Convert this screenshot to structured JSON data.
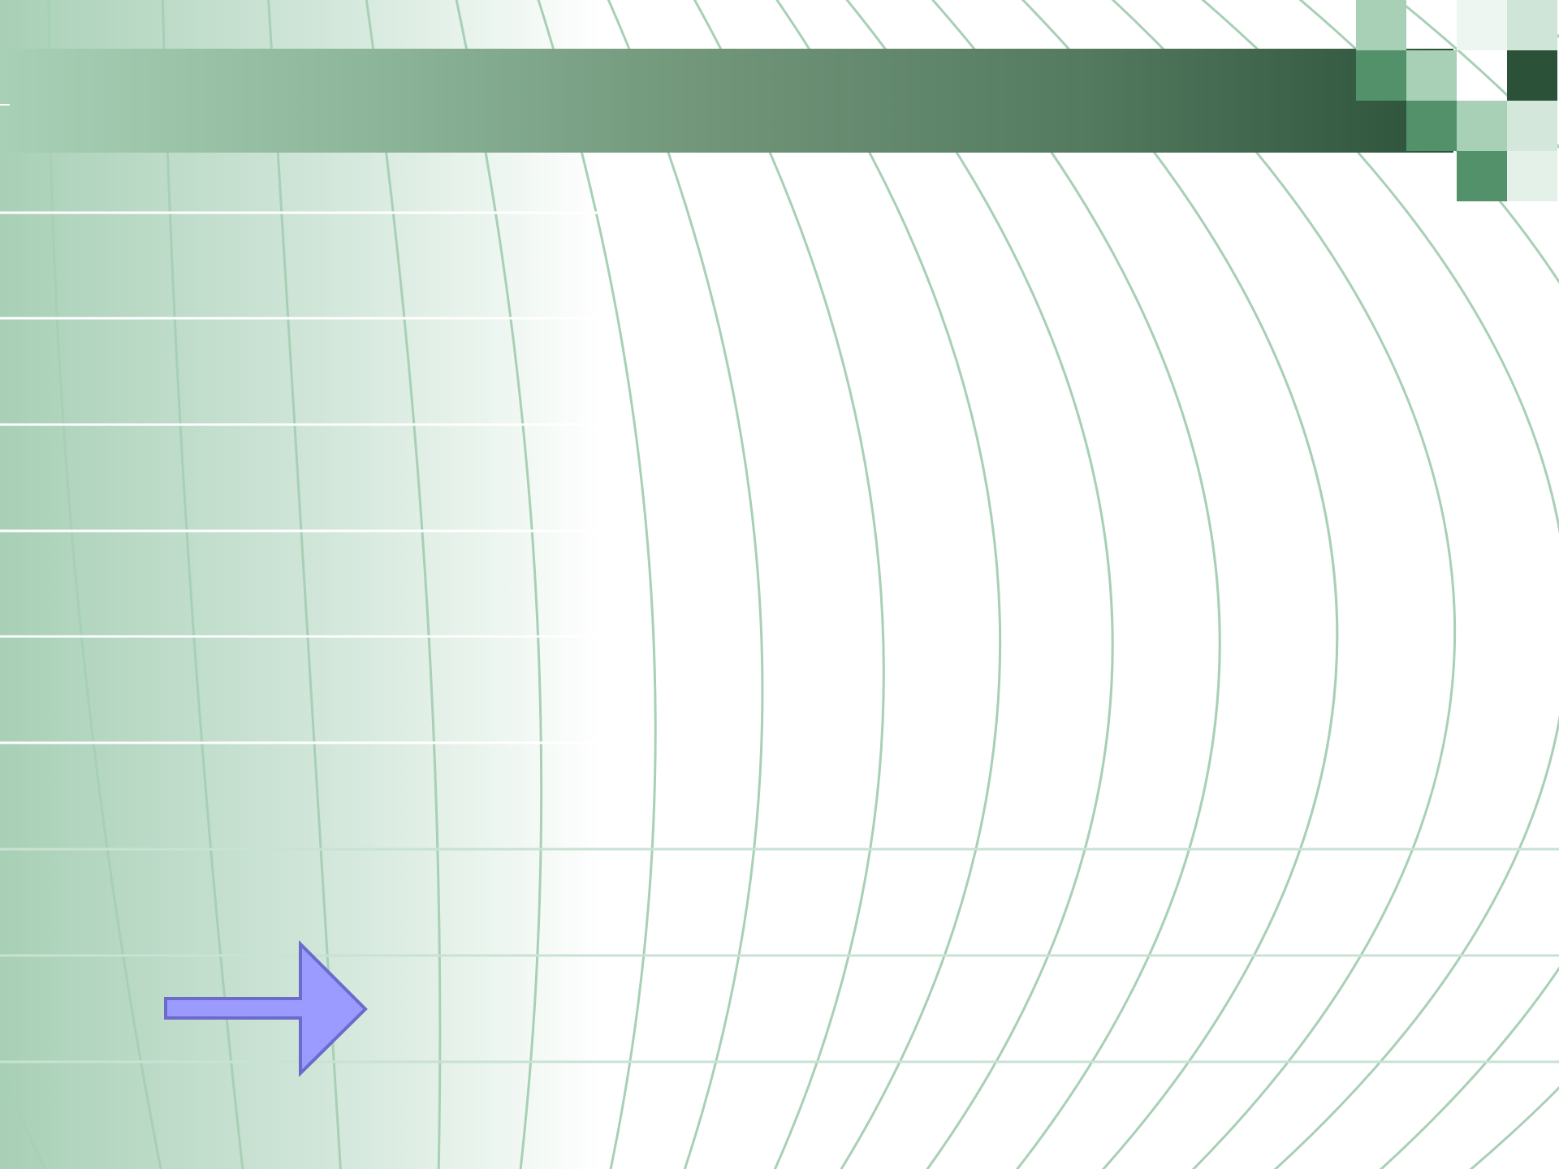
{
  "slide": {
    "background_colors": {
      "left": "#a8d0b6",
      "right": "#ffffff",
      "grid_line": "#a8d0b6"
    },
    "title_bar": {
      "color_left": "#a8d0b6",
      "color_right": "#2c5139"
    },
    "corner_pattern": {
      "colors": [
        "#a8d0b6",
        "#52916a",
        "#2c5139",
        "#ffffff"
      ]
    },
    "arrow": {
      "icon": "right-arrow-icon",
      "fill": "#9b9bff",
      "stroke": "#6b6bcc"
    }
  }
}
